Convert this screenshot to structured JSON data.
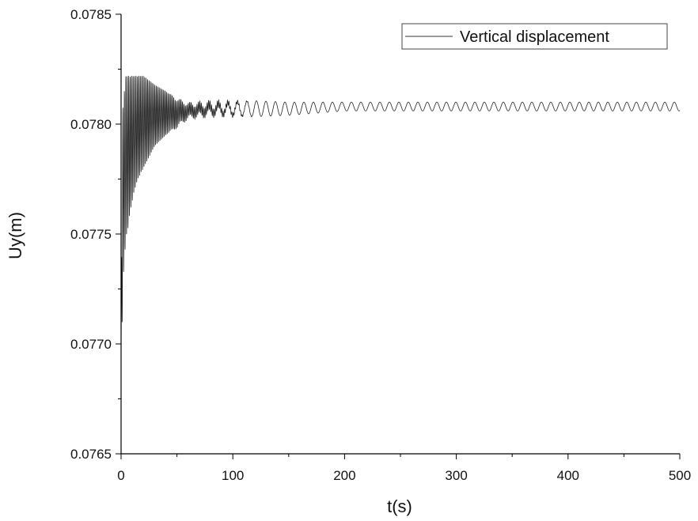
{
  "chart_data": {
    "type": "line",
    "title": "",
    "xlabel": "t(s)",
    "ylabel": "Uy(m)",
    "xlim": [
      0,
      500
    ],
    "ylim": [
      0.0765,
      0.0785
    ],
    "xticks": [
      0,
      100,
      200,
      300,
      400,
      500
    ],
    "yticks": [
      "0.0765",
      "0.0770",
      "0.0775",
      "0.0780",
      "0.0785"
    ],
    "grid": false,
    "legend_position": "top-right",
    "line_color": "#222222",
    "series": [
      {
        "name": "Vertical displacement",
        "x": [
          0,
          1,
          2,
          3,
          4,
          5,
          6,
          8,
          10,
          12,
          15,
          20,
          25,
          30,
          40,
          50,
          60,
          80,
          100,
          150,
          200,
          300,
          400,
          500
        ],
        "y_upper": [
          0.077,
          0.07795,
          0.07815,
          0.07815,
          0.07822,
          0.07822,
          0.07822,
          0.07822,
          0.07822,
          0.07822,
          0.07822,
          0.07822,
          0.0782,
          0.07818,
          0.07815,
          0.07812,
          0.0781,
          0.07811,
          0.07811,
          0.0781,
          0.0781,
          0.0781,
          0.0781,
          0.0781
        ],
        "y_lower": [
          0.0769,
          0.0771,
          0.0773,
          0.0774,
          0.07745,
          0.0775,
          0.07752,
          0.0776,
          0.07765,
          0.0777,
          0.07775,
          0.0778,
          0.07785,
          0.0779,
          0.07795,
          0.07798,
          0.07802,
          0.07803,
          0.07803,
          0.07804,
          0.07806,
          0.07806,
          0.07806,
          0.07806
        ],
        "oscillation_period_s": 8.5
      }
    ]
  }
}
